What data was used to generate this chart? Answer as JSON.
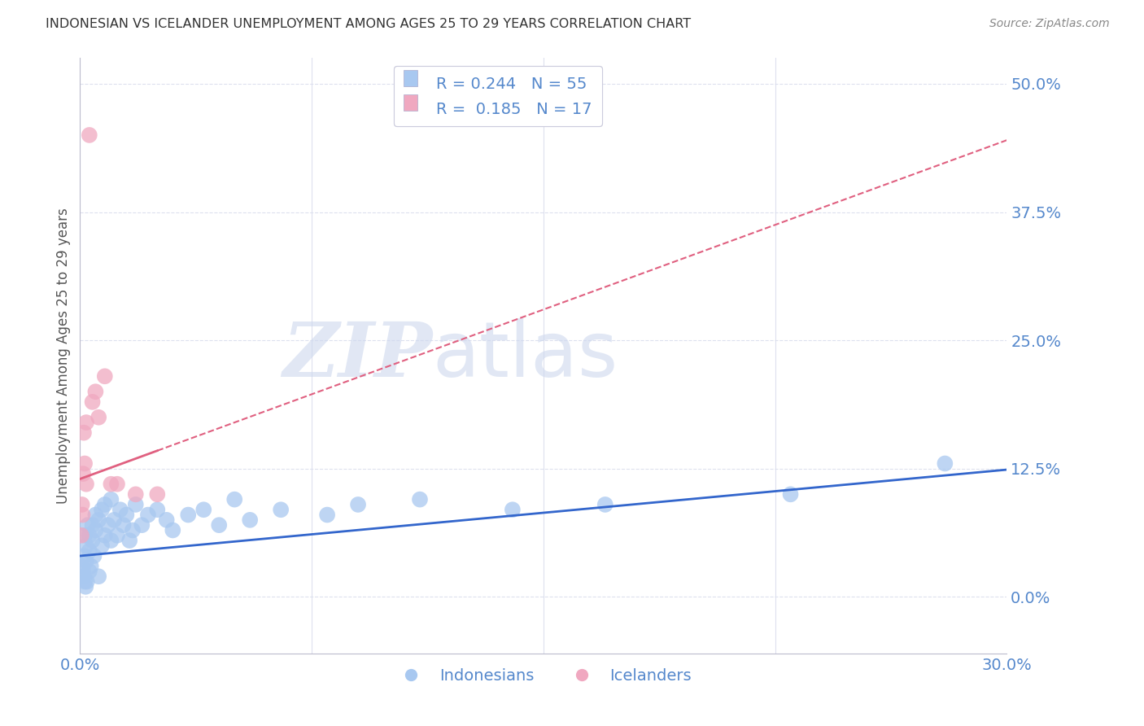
{
  "title": "INDONESIAN VS ICELANDER UNEMPLOYMENT AMONG AGES 25 TO 29 YEARS CORRELATION CHART",
  "source": "Source: ZipAtlas.com",
  "ylabel": "Unemployment Among Ages 25 to 29 years",
  "ytick_values": [
    0.0,
    0.125,
    0.25,
    0.375,
    0.5
  ],
  "ytick_labels": [
    "0.0%",
    "12.5%",
    "25.0%",
    "37.5%",
    "50.0%"
  ],
  "xmin": 0.0,
  "xmax": 0.3,
  "ymin": -0.055,
  "ymax": 0.525,
  "blue_color": "#a8c8f0",
  "pink_color": "#f0a8c0",
  "blue_line_color": "#3366cc",
  "pink_line_color": "#e06080",
  "axis_color": "#5588cc",
  "grid_color": "#dde0ee",
  "watermark_color": "#cdd8ee",
  "legend_r1": "R = 0.244",
  "legend_n1": "N = 55",
  "legend_r2": "R =  0.185",
  "legend_n2": "N = 17",
  "legend_label1": "Indonesians",
  "legend_label2": "Icelanders",
  "indo_x": [
    0.0005,
    0.001,
    0.0012,
    0.0013,
    0.0015,
    0.0015,
    0.0018,
    0.002,
    0.002,
    0.0022,
    0.0025,
    0.003,
    0.003,
    0.003,
    0.0035,
    0.004,
    0.004,
    0.0045,
    0.005,
    0.005,
    0.006,
    0.006,
    0.007,
    0.007,
    0.008,
    0.008,
    0.009,
    0.01,
    0.01,
    0.011,
    0.012,
    0.013,
    0.014,
    0.015,
    0.016,
    0.017,
    0.018,
    0.02,
    0.022,
    0.025,
    0.028,
    0.03,
    0.035,
    0.04,
    0.045,
    0.05,
    0.055,
    0.065,
    0.08,
    0.09,
    0.11,
    0.14,
    0.17,
    0.23,
    0.28
  ],
  "indo_y": [
    0.03,
    0.025,
    0.02,
    0.04,
    0.015,
    0.06,
    0.01,
    0.035,
    0.05,
    0.015,
    0.07,
    0.025,
    0.045,
    0.06,
    0.03,
    0.055,
    0.07,
    0.04,
    0.065,
    0.08,
    0.02,
    0.075,
    0.05,
    0.085,
    0.06,
    0.09,
    0.07,
    0.055,
    0.095,
    0.075,
    0.06,
    0.085,
    0.07,
    0.08,
    0.055,
    0.065,
    0.09,
    0.07,
    0.08,
    0.085,
    0.075,
    0.065,
    0.08,
    0.085,
    0.07,
    0.095,
    0.075,
    0.085,
    0.08,
    0.09,
    0.095,
    0.085,
    0.09,
    0.1,
    0.13
  ],
  "ice_x": [
    0.0004,
    0.0006,
    0.0008,
    0.001,
    0.0012,
    0.0015,
    0.002,
    0.002,
    0.003,
    0.004,
    0.005,
    0.006,
    0.008,
    0.01,
    0.012,
    0.018,
    0.025
  ],
  "ice_y": [
    0.06,
    0.09,
    0.08,
    0.12,
    0.16,
    0.13,
    0.17,
    0.11,
    0.45,
    0.19,
    0.2,
    0.175,
    0.215,
    0.11,
    0.11,
    0.1,
    0.1
  ],
  "blue_intercept": 0.04,
  "blue_slope": 0.28,
  "pink_intercept": 0.115,
  "pink_slope": 1.1
}
